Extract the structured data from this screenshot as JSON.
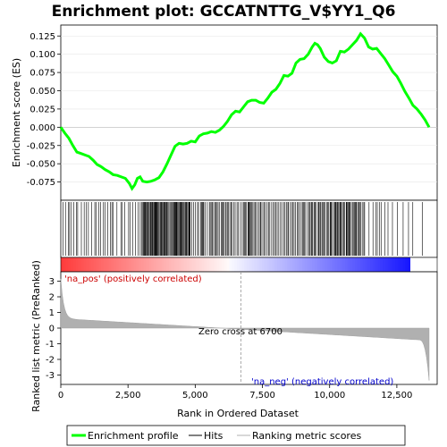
{
  "chart_data": {
    "type": "line",
    "title": "Enrichment plot: GCCATNTTG_V$YY1_Q6",
    "xlabel": "Rank in Ordered Dataset",
    "ylabel_top": "Enrichment score (ES)",
    "ylabel_bottom": "Ranked list metric (PreRanked)",
    "x_range": [
      0,
      14000
    ],
    "x_ticks": [
      0,
      2500,
      5000,
      7500,
      10000,
      12500
    ],
    "x_tick_labels": [
      "0",
      "2,500",
      "5,000",
      "7,500",
      "10,000",
      "12,500"
    ],
    "es_ylim": [
      -0.1,
      0.14
    ],
    "es_ticks": [
      -0.075,
      -0.05,
      -0.025,
      0.0,
      0.025,
      0.05,
      0.075,
      0.1,
      0.125
    ],
    "es_tick_labels": [
      "-0.075",
      "-0.050",
      "-0.025",
      "0.000",
      "0.025",
      "0.050",
      "0.075",
      "0.100",
      "0.125"
    ],
    "metric_ylim": [
      -3.6,
      3.6
    ],
    "metric_ticks": [
      -3,
      -2,
      -1,
      0,
      1,
      2,
      3
    ],
    "metric_tick_labels": [
      "-3",
      "-2",
      "-1",
      "0",
      "1",
      "2",
      "3"
    ],
    "series": [
      {
        "name": "Enrichment profile",
        "color": "#00ff00",
        "x": [
          0,
          150,
          300,
          450,
          600,
          750,
          900,
          1050,
          1200,
          1350,
          1500,
          1650,
          1800,
          1950,
          2100,
          2250,
          2400,
          2550,
          2650,
          2750,
          2850,
          2950,
          3050,
          3200,
          3350,
          3500,
          3650,
          3800,
          3950,
          4100,
          4250,
          4400,
          4550,
          4700,
          4850,
          5000,
          5150,
          5300,
          5450,
          5600,
          5750,
          5900,
          6050,
          6200,
          6350,
          6500,
          6650,
          6800,
          6950,
          7100,
          7250,
          7400,
          7550,
          7700,
          7850,
          8000,
          8150,
          8300,
          8450,
          8600,
          8750,
          8900,
          9050,
          9200,
          9350,
          9450,
          9550,
          9650,
          9800,
          9950,
          10100,
          10250,
          10400,
          10550,
          10700,
          10850,
          11000,
          11150,
          11300,
          11450,
          11600,
          11750,
          11900,
          12050,
          12200,
          12350,
          12500,
          12650,
          12800,
          12950,
          13100,
          13250,
          13400,
          13550,
          13700
        ],
        "y": [
          0.0,
          -0.008,
          -0.015,
          -0.025,
          -0.034,
          -0.036,
          -0.038,
          -0.04,
          -0.045,
          -0.051,
          -0.054,
          -0.058,
          -0.061,
          -0.065,
          -0.066,
          -0.068,
          -0.07,
          -0.077,
          -0.084,
          -0.079,
          -0.07,
          -0.068,
          -0.074,
          -0.075,
          -0.074,
          -0.072,
          -0.069,
          -0.061,
          -0.05,
          -0.038,
          -0.026,
          -0.022,
          -0.023,
          -0.022,
          -0.019,
          -0.02,
          -0.012,
          -0.009,
          -0.008,
          -0.006,
          -0.007,
          -0.004,
          0.001,
          0.008,
          0.017,
          0.022,
          0.021,
          0.028,
          0.035,
          0.037,
          0.037,
          0.034,
          0.033,
          0.04,
          0.048,
          0.052,
          0.06,
          0.071,
          0.07,
          0.074,
          0.088,
          0.093,
          0.094,
          0.1,
          0.11,
          0.115,
          0.113,
          0.108,
          0.096,
          0.09,
          0.088,
          0.091,
          0.104,
          0.103,
          0.107,
          0.113,
          0.119,
          0.128,
          0.122,
          0.11,
          0.107,
          0.108,
          0.101,
          0.094,
          0.085,
          0.076,
          0.07,
          0.06,
          0.049,
          0.04,
          0.03,
          0.025,
          0.018,
          0.01,
          0.0
        ]
      }
    ],
    "hits_label": "Hits",
    "metric_label": "Ranking metric scores",
    "pos_label": "'na_pos' (positively correlated)",
    "neg_label": "'na_neg' (negatively correlated)",
    "zero_cross_label": "Zero cross at 6700",
    "zero_cross": 6700,
    "colors": {
      "es_line": "#00ff00",
      "pos_text": "#cc0000",
      "neg_text": "#0000cc",
      "metric_fill": "#b0b0b0",
      "heat_red": "#ff0000",
      "heat_blue": "#0000ff"
    }
  },
  "legend": {
    "items": [
      {
        "label": "Enrichment profile",
        "color": "#00ff00"
      },
      {
        "label": "Hits",
        "color": "#000000"
      },
      {
        "label": "Ranking metric scores",
        "color": "#b0b0b0"
      }
    ]
  }
}
